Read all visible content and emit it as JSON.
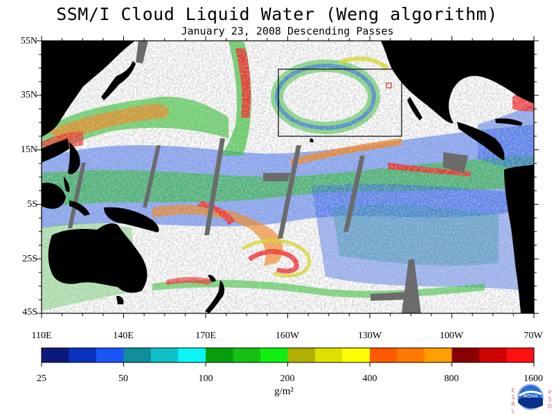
{
  "title": "SSM/I Cloud Liquid Water (Weng algorithm)",
  "subtitle": "January 23, 2008  Descending Passes",
  "lat_labels": [
    "55N",
    "35N",
    "15N",
    "5S",
    "25S",
    "45S"
  ],
  "lon_labels": [
    "110E",
    "140E",
    "170E",
    "160W",
    "130W",
    "100W",
    "70W"
  ],
  "colorbar": {
    "tick_labels": [
      "25",
      "50",
      "100",
      "200",
      "400",
      "800",
      "1600"
    ],
    "units": "g/m²",
    "colors": [
      "#0b1a7a",
      "#0a33c0",
      "#1a55f5",
      "#0e8e9a",
      "#10c0c8",
      "#0af6f6",
      "#069e0a",
      "#14c014",
      "#10f010",
      "#b0b000",
      "#e0e000",
      "#ffff00",
      "#ff5a00",
      "#ff7a00",
      "#ff9f00",
      "#8a0000",
      "#d00000",
      "#ff1010"
    ]
  },
  "logo": {
    "text": "NOAA",
    "left_letters": [
      "E",
      "S",
      "R",
      "L"
    ],
    "right_letters": [
      "P",
      "S",
      "D"
    ]
  },
  "colors": {
    "land": "#000000",
    "missing": "#6b6b6b",
    "clear": "#ffffff"
  }
}
